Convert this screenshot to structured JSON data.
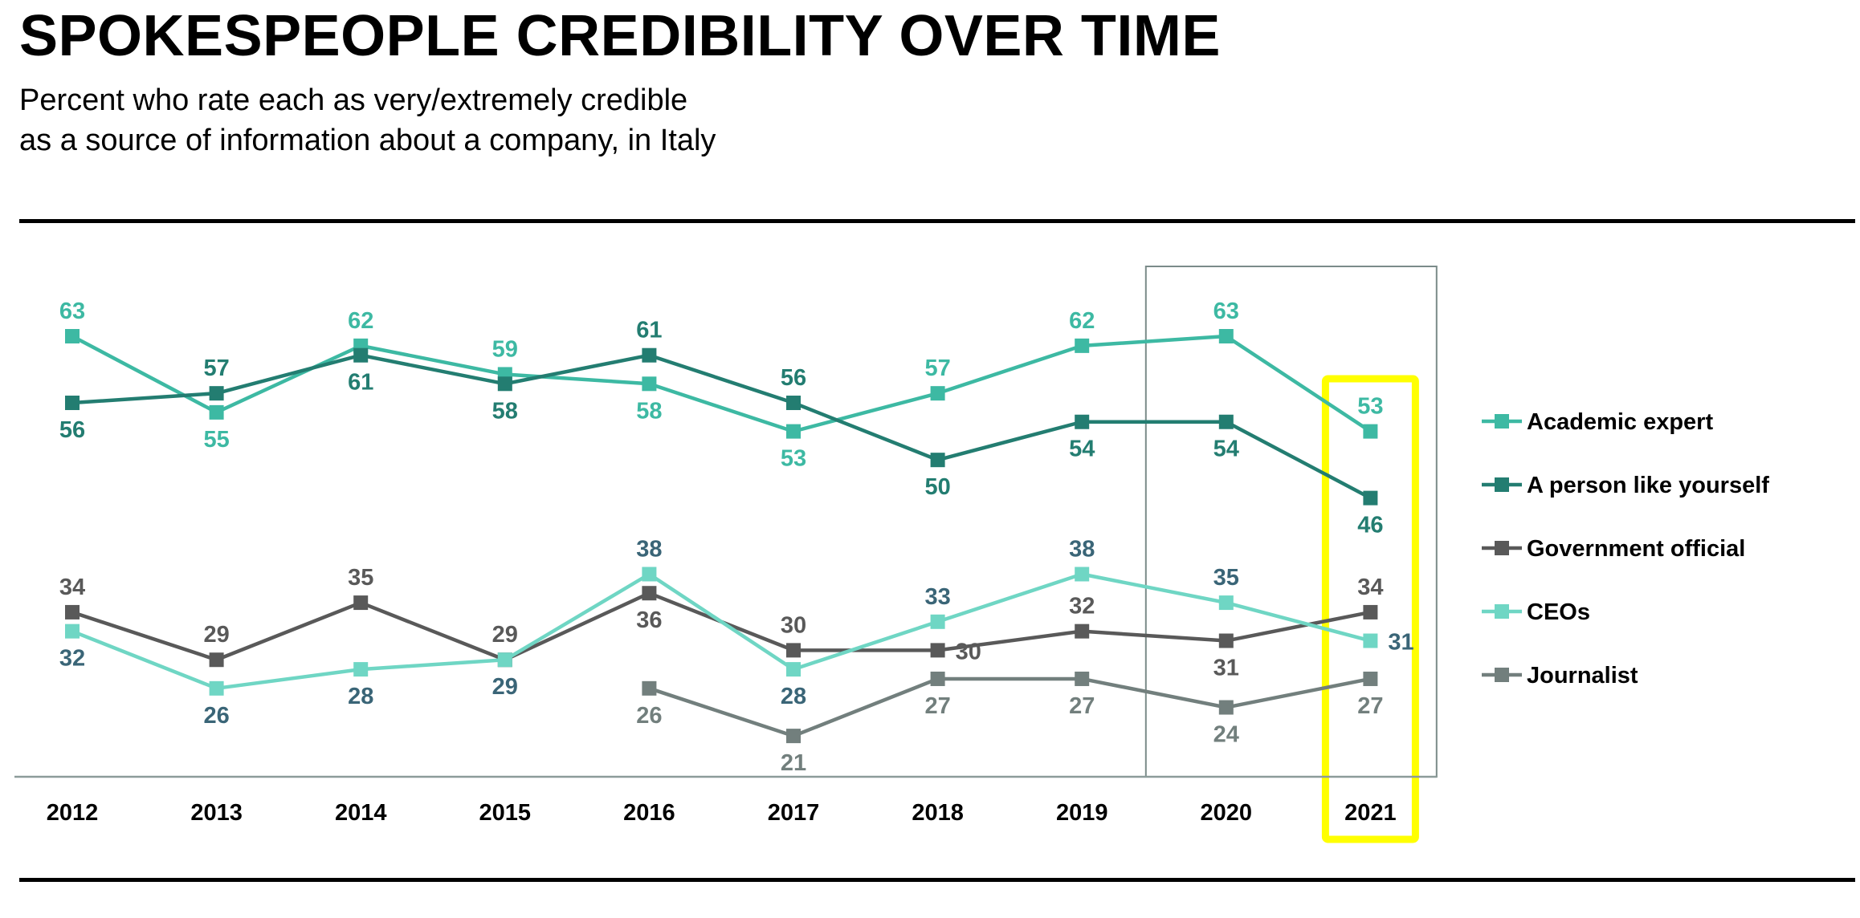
{
  "page": {
    "title": "SPOKESPEOPLE CREDIBILITY OVER TIME",
    "subtitle_line1": "Percent who rate each as very/extremely credible",
    "subtitle_line2": "as a source of information about a company, in Italy"
  },
  "chart_data": {
    "type": "line",
    "title": "SPOKESPEOPLE CREDIBILITY OVER TIME",
    "subtitle": "Percent who rate each as very/extremely credible as a source of information about a company, in Italy",
    "xlabel": "",
    "ylabel": "",
    "x": [
      "2012",
      "2013",
      "2014",
      "2015",
      "2016",
      "2017",
      "2018",
      "2019",
      "2020",
      "2021"
    ],
    "ylim": [
      15,
      70
    ],
    "grid": false,
    "legend_position": "right",
    "highlight": [
      "2020",
      "2021"
    ],
    "series": [
      {
        "name": "Academic expert",
        "color": "#3db9a3",
        "label_color": "#3db9a3",
        "values": [
          63,
          55,
          62,
          59,
          58,
          53,
          57,
          62,
          63,
          53
        ]
      },
      {
        "name": "A person like yourself",
        "color": "#237d71",
        "label_color": "#237d71",
        "values": [
          56,
          57,
          61,
          58,
          61,
          56,
          50,
          54,
          54,
          46
        ]
      },
      {
        "name": "Government official",
        "color": "#595959",
        "label_color": "#595959",
        "values": [
          34,
          29,
          35,
          29,
          36,
          30,
          30,
          32,
          31,
          34
        ]
      },
      {
        "name": "CEOs",
        "color": "#6fd6c4",
        "label_color": "#3a6577",
        "values": [
          32,
          26,
          28,
          29,
          38,
          28,
          33,
          38,
          35,
          31
        ]
      },
      {
        "name": "Journalist",
        "color": "#727f7d",
        "label_color": "#727f7d",
        "values": [
          null,
          null,
          null,
          null,
          26,
          21,
          27,
          27,
          24,
          27
        ]
      }
    ]
  }
}
